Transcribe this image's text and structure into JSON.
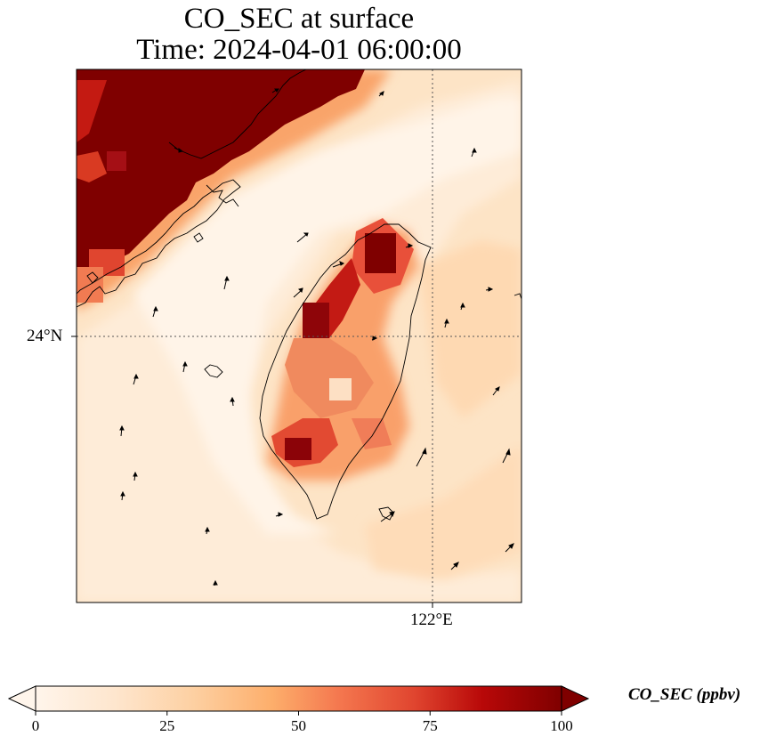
{
  "title": {
    "line1": "CO_SEC at surface",
    "line2": "Time: 2024-04-01 06:00:00"
  },
  "axes": {
    "lat_tick": "24°N",
    "lon_tick": "122°E"
  },
  "colorbar": {
    "label": "CO_SEC (ppbv)",
    "min": 0,
    "max": 100,
    "extend": "both",
    "ticks": [
      "0",
      "25",
      "50",
      "75",
      "100"
    ],
    "colormap": [
      "#fff5eb",
      "#fee6ce",
      "#fdd0a2",
      "#fdae6b",
      "#fd8d3c",
      "#f16913",
      "#d94801",
      "#a50f15",
      "#7f0000"
    ]
  },
  "map": {
    "region": "Taiwan and Taiwan Strait",
    "gridlines": "dotted",
    "overlay": "wind vectors"
  }
}
